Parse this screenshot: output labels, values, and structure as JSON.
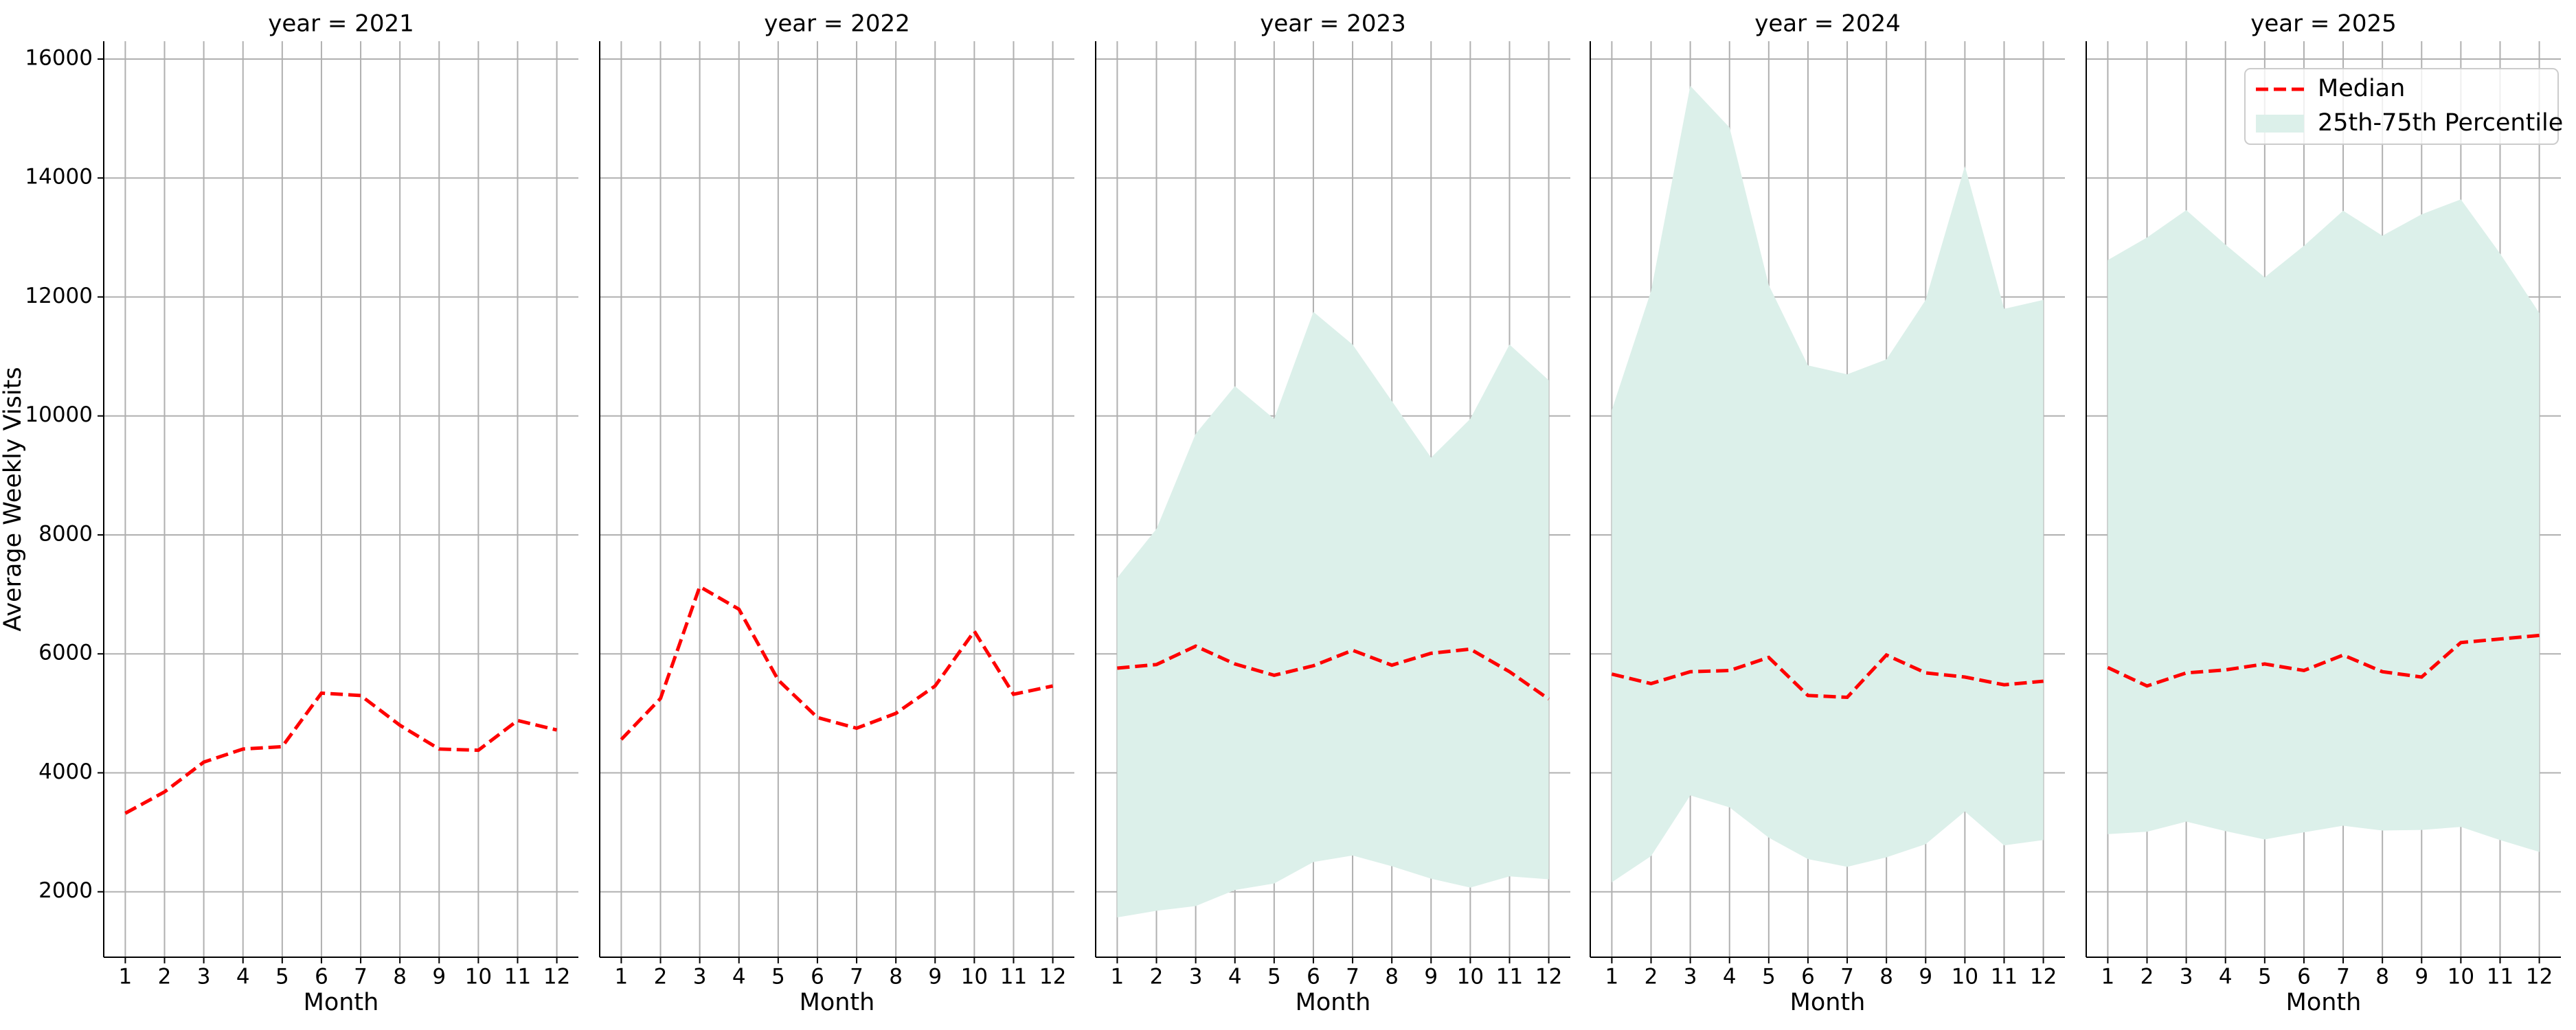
{
  "chart_data": [
    {
      "type": "line",
      "title": "year = 2021",
      "xlabel": "Month",
      "ylabel": "Average Weekly Visits",
      "grid": true,
      "x": [
        1,
        2,
        3,
        4,
        5,
        6,
        7,
        8,
        9,
        10,
        11,
        12
      ],
      "xlim": [
        0.45,
        12.55
      ],
      "xticks": [
        1,
        2,
        3,
        4,
        5,
        6,
        7,
        8,
        9,
        10,
        11,
        12
      ],
      "ylim": [
        900,
        16300
      ],
      "yticks": [
        2000,
        4000,
        6000,
        8000,
        10000,
        12000,
        14000,
        16000
      ],
      "series": [
        {
          "type": "line",
          "color": "#ff0000",
          "values": [
            3320,
            3680,
            4180,
            4400,
            4440,
            5340,
            5300,
            4800,
            4400,
            4380,
            4880,
            4720
          ]
        }
      ]
    },
    {
      "type": "line",
      "title": "year = 2022",
      "xlabel": "Month",
      "grid": true,
      "x": [
        1,
        2,
        3,
        4,
        5,
        6,
        7,
        8,
        9,
        10,
        11,
        12
      ],
      "xlim": [
        0.45,
        12.55
      ],
      "xticks": [
        1,
        2,
        3,
        4,
        5,
        6,
        7,
        8,
        9,
        10,
        11,
        12
      ],
      "ylim": [
        900,
        16300
      ],
      "yticks": [
        2000,
        4000,
        6000,
        8000,
        10000,
        12000,
        14000,
        16000
      ],
      "series": [
        {
          "type": "line",
          "color": "#ff0000",
          "values": [
            4560,
            5250,
            7130,
            6750,
            5560,
            4930,
            4750,
            5000,
            5460,
            6380,
            5320,
            5460
          ]
        }
      ]
    },
    {
      "type": "line",
      "title": "year = 2023",
      "xlabel": "Month",
      "grid": true,
      "x": [
        1,
        2,
        3,
        4,
        5,
        6,
        7,
        8,
        9,
        10,
        11,
        12
      ],
      "xlim": [
        0.45,
        12.55
      ],
      "xticks": [
        1,
        2,
        3,
        4,
        5,
        6,
        7,
        8,
        9,
        10,
        11,
        12
      ],
      "ylim": [
        900,
        16300
      ],
      "yticks": [
        2000,
        4000,
        6000,
        8000,
        10000,
        12000,
        14000,
        16000
      ],
      "series": [
        {
          "type": "line",
          "color": "#ff0000",
          "values": [
            5760,
            5820,
            6130,
            5830,
            5640,
            5800,
            6060,
            5810,
            6010,
            6080,
            5700,
            5240
          ]
        },
        {
          "type": "band",
          "color": "#dcf0ea",
          "lower": [
            1570,
            1680,
            1760,
            2030,
            2140,
            2500,
            2610,
            2430,
            2220,
            2070,
            2260,
            2210
          ],
          "upper": [
            7280,
            8100,
            9700,
            10500,
            9950,
            11750,
            11200,
            10250,
            9300,
            9950,
            11200,
            10600
          ]
        }
      ]
    },
    {
      "type": "line",
      "title": "year = 2024",
      "xlabel": "Month",
      "grid": true,
      "x": [
        1,
        2,
        3,
        4,
        5,
        6,
        7,
        8,
        9,
        10,
        11,
        12
      ],
      "xlim": [
        0.45,
        12.55
      ],
      "xticks": [
        1,
        2,
        3,
        4,
        5,
        6,
        7,
        8,
        9,
        10,
        11,
        12
      ],
      "ylim": [
        900,
        16300
      ],
      "yticks": [
        2000,
        4000,
        6000,
        8000,
        10000,
        12000,
        14000,
        16000
      ],
      "series": [
        {
          "type": "line",
          "color": "#ff0000",
          "values": [
            5660,
            5500,
            5700,
            5720,
            5940,
            5300,
            5270,
            5980,
            5680,
            5610,
            5480,
            5540
          ]
        },
        {
          "type": "band",
          "color": "#dcf0ea",
          "lower": [
            2160,
            2600,
            3620,
            3420,
            2910,
            2550,
            2420,
            2580,
            2800,
            3350,
            2780,
            2870
          ],
          "upper": [
            10100,
            12100,
            15550,
            14850,
            12200,
            10850,
            10700,
            10950,
            11950,
            14200,
            11800,
            11950
          ]
        }
      ]
    },
    {
      "type": "line",
      "title": "year = 2025",
      "xlabel": "Month",
      "grid": true,
      "legend": "upper right",
      "x": [
        1,
        2,
        3,
        4,
        5,
        6,
        7,
        8,
        9,
        10,
        11,
        12
      ],
      "xlim": [
        0.45,
        12.55
      ],
      "xticks": [
        1,
        2,
        3,
        4,
        5,
        6,
        7,
        8,
        9,
        10,
        11,
        12
      ],
      "ylim": [
        900,
        16300
      ],
      "yticks": [
        2000,
        4000,
        6000,
        8000,
        10000,
        12000,
        14000,
        16000
      ],
      "series": [
        {
          "type": "line",
          "name": "Median",
          "color": "#ff0000",
          "values": [
            5770,
            5460,
            5680,
            5730,
            5830,
            5720,
            5980,
            5700,
            5610,
            6190,
            6250,
            6310
          ]
        },
        {
          "type": "band",
          "name": "25th-75th Percentile",
          "color": "#dcf0ea",
          "lower": [
            2970,
            3010,
            3180,
            3020,
            2880,
            3000,
            3110,
            3030,
            3040,
            3090,
            2870,
            2670
          ],
          "upper": [
            12620,
            13000,
            13460,
            12880,
            12330,
            12860,
            13450,
            13030,
            13390,
            13640,
            12730,
            11730
          ]
        }
      ]
    }
  ]
}
